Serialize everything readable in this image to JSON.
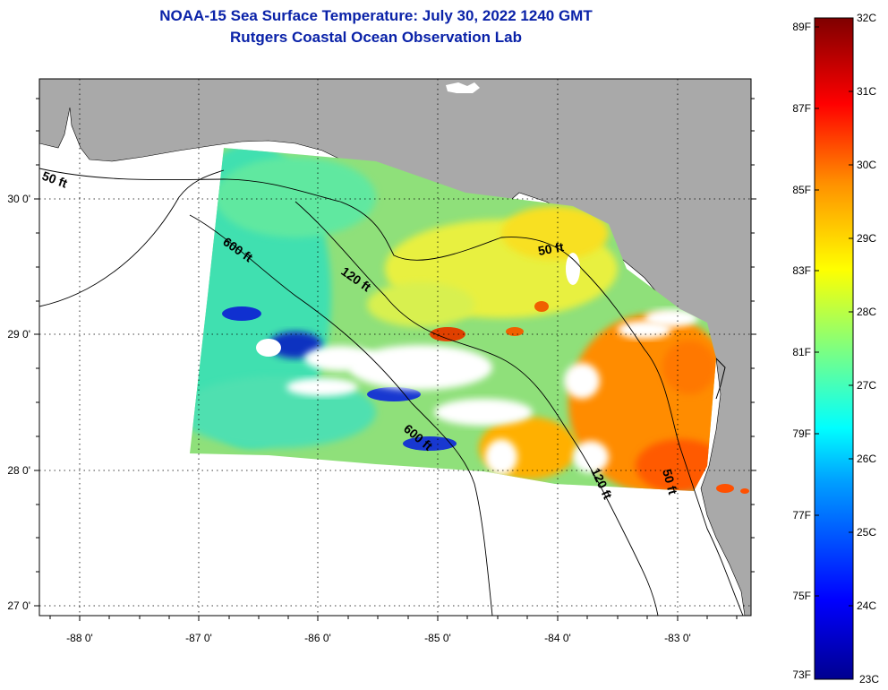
{
  "title": "NOAA-15 Sea Surface Temperature:  July 30, 2022 1240 GMT",
  "subtitle": "Rutgers Coastal Ocean Observation Lab",
  "axes": {
    "lat_ticks": [
      "30 0'",
      "29 0'",
      "28 0'",
      "27 0'"
    ],
    "lon_ticks": [
      "-88 0'",
      "-87 0'",
      "-86 0'",
      "-85 0'",
      "-84 0'",
      "-83 0'"
    ]
  },
  "depth_contours": [
    "50 ft",
    "120 ft",
    "600 ft",
    "600 ft",
    "50 ft",
    "120 ft",
    "50 ft"
  ],
  "colorbar": {
    "fahrenheit_labels": [
      "89F",
      "87F",
      "85F",
      "83F",
      "81F",
      "79F",
      "77F",
      "75F",
      "73F"
    ],
    "celsius_labels": [
      "32C",
      "31C",
      "30C",
      "29C",
      "28C",
      "27C",
      "26C",
      "25C",
      "24C",
      "23C"
    ]
  },
  "colors": {
    "title": "#0a22a8",
    "land": "#a9a9a9",
    "no_data": "#ffffff",
    "warm": "#ff6a00",
    "cool": "#30e0b0",
    "cold": "#0a1aa0"
  }
}
